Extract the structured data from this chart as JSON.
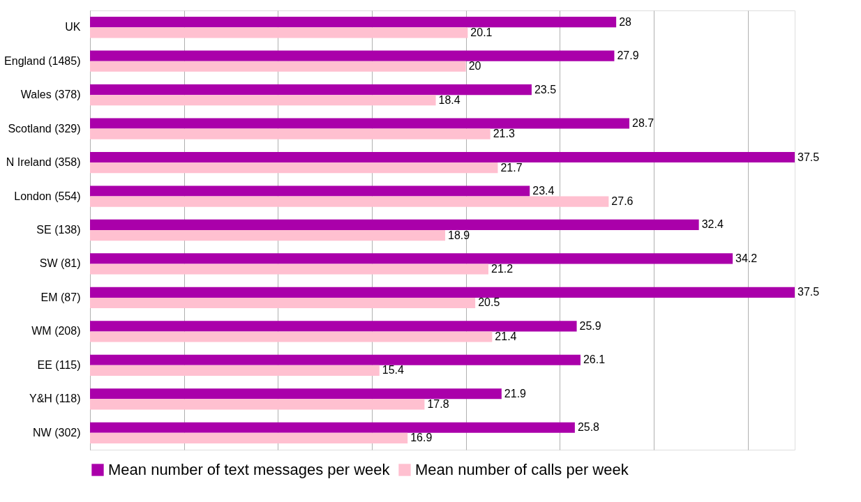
{
  "chart_data": {
    "type": "bar",
    "orientation": "horizontal",
    "categories": [
      "UK",
      "England (1485)",
      "Wales (378)",
      "Scotland (329)",
      "N Ireland (358)",
      "London (554)",
      "SE (138)",
      "SW (81)",
      "EM (87)",
      "WM (208)",
      "EE (115)",
      "Y&H (118)",
      "NW (302)"
    ],
    "series": [
      {
        "name": "Mean number of text messages per week",
        "color": "#aa00aa",
        "values": [
          28,
          27.9,
          23.5,
          28.7,
          37.5,
          23.4,
          32.4,
          34.2,
          37.5,
          25.9,
          26.1,
          21.9,
          25.8
        ]
      },
      {
        "name": "Mean number of calls per week",
        "color": "#ffc0d0",
        "values": [
          20.1,
          20,
          18.4,
          21.3,
          21.7,
          27.6,
          18.9,
          21.2,
          20.5,
          21.4,
          15.4,
          17.8,
          16.9
        ]
      }
    ],
    "xlim": [
      0,
      37.5
    ],
    "xticks": [
      {
        "value": 0,
        "label": null
      },
      {
        "value": 5,
        "label": null
      },
      {
        "value": 10,
        "label": null
      },
      {
        "value": 15,
        "label": null
      },
      {
        "value": 20,
        "label": null
      },
      {
        "value": 25,
        "label": null
      },
      {
        "value": 30,
        "label": null
      },
      {
        "value": 35,
        "label": null
      }
    ],
    "grid": "x",
    "legend": "bottom",
    "data_labels": true,
    "tick_labels": "y"
  }
}
